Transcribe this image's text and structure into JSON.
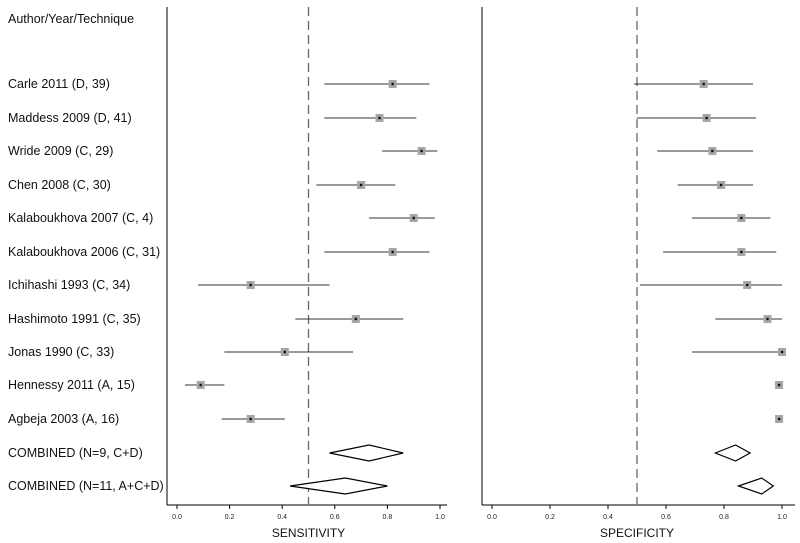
{
  "header": "Author/Year/Technique",
  "chart_data": {
    "type": "forest",
    "panels": [
      {
        "name": "sensitivity",
        "xlabel": "SENSITIVITY",
        "xlim": [
          0,
          1
        ],
        "reference_line": 0.5
      },
      {
        "name": "specificity",
        "xlabel": "SPECIFICITY",
        "xlim": [
          0,
          1
        ],
        "reference_line": 0.5
      }
    ],
    "ticks": [
      "0.0",
      "0.2",
      "0.4",
      "0.6",
      "0.8",
      "1.0"
    ],
    "tick_values": [
      0,
      0.2,
      0.4,
      0.6,
      0.8,
      1.0
    ],
    "studies": [
      {
        "label": "Carle 2011 (D, 39)",
        "sensitivity": {
          "est": 0.82,
          "lo": 0.56,
          "hi": 0.96
        },
        "specificity": {
          "est": 0.73,
          "lo": 0.49,
          "hi": 0.9
        }
      },
      {
        "label": "Maddess 2009 (D, 41)",
        "sensitivity": {
          "est": 0.77,
          "lo": 0.56,
          "hi": 0.91
        },
        "specificity": {
          "est": 0.74,
          "lo": 0.5,
          "hi": 0.91
        }
      },
      {
        "label": "Wride 2009 (C, 29)",
        "sensitivity": {
          "est": 0.93,
          "lo": 0.78,
          "hi": 0.99
        },
        "specificity": {
          "est": 0.76,
          "lo": 0.57,
          "hi": 0.9
        }
      },
      {
        "label": "Chen 2008 (C, 30)",
        "sensitivity": {
          "est": 0.7,
          "lo": 0.53,
          "hi": 0.83
        },
        "specificity": {
          "est": 0.79,
          "lo": 0.64,
          "hi": 0.9
        }
      },
      {
        "label": "Kalaboukhova 2007 (C, 4)",
        "sensitivity": {
          "est": 0.9,
          "lo": 0.73,
          "hi": 0.98
        },
        "specificity": {
          "est": 0.86,
          "lo": 0.69,
          "hi": 0.96
        }
      },
      {
        "label": "Kalaboukhova 2006 (C, 31)",
        "sensitivity": {
          "est": 0.82,
          "lo": 0.56,
          "hi": 0.96
        },
        "specificity": {
          "est": 0.86,
          "lo": 0.59,
          "hi": 0.98
        }
      },
      {
        "label": "Ichihashi 1993 (C, 34)",
        "sensitivity": {
          "est": 0.28,
          "lo": 0.08,
          "hi": 0.58
        },
        "specificity": {
          "est": 0.88,
          "lo": 0.51,
          "hi": 1.0
        }
      },
      {
        "label": "Hashimoto 1991 (C, 35)",
        "sensitivity": {
          "est": 0.68,
          "lo": 0.45,
          "hi": 0.86
        },
        "specificity": {
          "est": 0.95,
          "lo": 0.77,
          "hi": 1.0
        }
      },
      {
        "label": "Jonas 1990 (C, 33)",
        "sensitivity": {
          "est": 0.41,
          "lo": 0.18,
          "hi": 0.67
        },
        "specificity": {
          "est": 1.0,
          "lo": 0.69,
          "hi": 1.0
        }
      },
      {
        "label": "Hennessy 2011 (A, 15)",
        "sensitivity": {
          "est": 0.09,
          "lo": 0.03,
          "hi": 0.18
        },
        "specificity": {
          "est": 0.99,
          "lo": 0.99,
          "hi": 0.99
        }
      },
      {
        "label": "Agbeja 2003 (A, 16)",
        "sensitivity": {
          "est": 0.28,
          "lo": 0.17,
          "hi": 0.41
        },
        "specificity": {
          "est": 0.99,
          "lo": 0.99,
          "hi": 0.99
        }
      }
    ],
    "combined": [
      {
        "label": "COMBINED (N=9, C+D)",
        "sensitivity": {
          "est": 0.73,
          "lo": 0.58,
          "hi": 0.86
        },
        "specificity": {
          "est": 0.84,
          "lo": 0.77,
          "hi": 0.89
        }
      },
      {
        "label": "COMBINED (N=11, A+C+D)",
        "sensitivity": {
          "est": 0.64,
          "lo": 0.43,
          "hi": 0.8
        },
        "specificity": {
          "est": 0.93,
          "lo": 0.85,
          "hi": 0.97
        }
      }
    ],
    "colors": {
      "box": "#a6a6a6",
      "line": "#333333",
      "ref_line": "#666666"
    }
  }
}
